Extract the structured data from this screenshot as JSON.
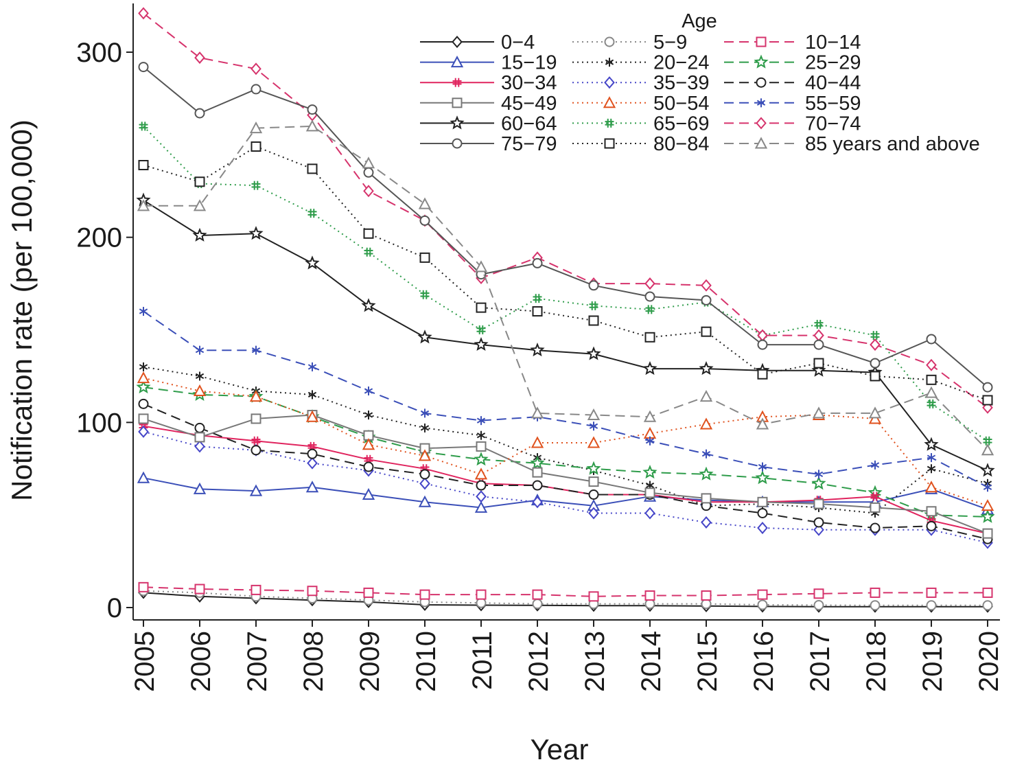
{
  "chart_data": {
    "type": "line",
    "title": "",
    "xlabel": "Year",
    "ylabel": "Notification rate (per 100,000)",
    "ylim": [
      0,
      320
    ],
    "yticks": [
      0,
      100,
      200,
      300
    ],
    "x": [
      "2005",
      "2006",
      "2007",
      "2008",
      "2009",
      "2010",
      "2011",
      "2012",
      "2013",
      "2014",
      "2015",
      "2016",
      "2017",
      "2018",
      "2019",
      "2020"
    ],
    "grid": false,
    "legend": {
      "title": "Age",
      "position": "top-right",
      "columns": 3
    },
    "series": [
      {
        "name": "0−4",
        "color": "#222222",
        "dash": "solid",
        "marker": "diamond",
        "values": [
          8,
          6,
          5,
          4,
          3,
          1.5,
          1.3,
          1.2,
          1,
          1,
          0.8,
          0.6,
          0.5,
          0.5,
          0.5,
          0.5
        ]
      },
      {
        "name": "5−9",
        "color": "#888888",
        "dash": "dot",
        "marker": "circle",
        "values": [
          9,
          8,
          6,
          5,
          4,
          3,
          2.5,
          2,
          2,
          2,
          2,
          1.5,
          1.3,
          1.2,
          1.2,
          1.2
        ]
      },
      {
        "name": "10−14",
        "color": "#d6336c",
        "dash": "dash",
        "marker": "square",
        "values": [
          11,
          10,
          9.5,
          9,
          8,
          7,
          7,
          7,
          6,
          6.5,
          6.5,
          7,
          7.5,
          8,
          8,
          8
        ]
      },
      {
        "name": "15−19",
        "color": "#3b4fb8",
        "dash": "solid",
        "marker": "triangle",
        "values": [
          70,
          64,
          63,
          65,
          61,
          57,
          54,
          58,
          55,
          60,
          58,
          57,
          57,
          57,
          64,
          53
        ]
      },
      {
        "name": "20−24",
        "color": "#222222",
        "dash": "dot",
        "marker": "asterisk",
        "values": [
          130,
          125,
          117,
          115,
          104,
          97,
          93,
          81,
          74,
          66,
          55,
          56,
          54,
          51,
          75,
          67
        ]
      },
      {
        "name": "25−29",
        "color": "#2e9c4a",
        "dash": "dash",
        "marker": "star",
        "values": [
          119,
          115,
          114,
          103,
          92,
          84,
          80,
          78,
          75,
          73,
          72,
          70,
          67,
          62,
          50,
          49
        ]
      },
      {
        "name": "30−34",
        "color": "#e0245e",
        "dash": "solid",
        "marker": "hash",
        "values": [
          98,
          93,
          90,
          87,
          80,
          75,
          67,
          66,
          61,
          61,
          57,
          57,
          58,
          60,
          47,
          40
        ]
      },
      {
        "name": "35−39",
        "color": "#4646c8",
        "dash": "dot",
        "marker": "diamond",
        "values": [
          95,
          87,
          85,
          78,
          74,
          67,
          60,
          57,
          51,
          51,
          46,
          43,
          42,
          42,
          42,
          35
        ]
      },
      {
        "name": "40−44",
        "color": "#222222",
        "dash": "dash",
        "marker": "circle",
        "values": [
          110,
          97,
          85,
          83,
          76,
          72,
          66,
          66,
          61,
          61,
          55,
          51,
          46,
          43,
          44,
          37
        ]
      },
      {
        "name": "45−49",
        "color": "#777777",
        "dash": "solid",
        "marker": "square",
        "values": [
          102,
          92,
          102,
          104,
          93,
          86,
          87,
          73,
          68,
          62,
          59,
          57,
          56,
          54,
          52,
          40
        ]
      },
      {
        "name": "50−54",
        "color": "#e0521e",
        "dash": "dot",
        "marker": "triangle",
        "values": [
          124,
          117,
          114,
          103,
          88,
          82,
          72,
          89,
          89,
          94,
          99,
          103,
          104,
          102,
          65,
          55
        ]
      },
      {
        "name": "55−59",
        "color": "#3b4fb8",
        "dash": "dash",
        "marker": "asterisk",
        "values": [
          160,
          139,
          139,
          130,
          117,
          105,
          101,
          103,
          98,
          90,
          83,
          76,
          72,
          77,
          81,
          65
        ]
      },
      {
        "name": "60−64",
        "color": "#222222",
        "dash": "solid",
        "marker": "star",
        "values": [
          220,
          201,
          202,
          186,
          163,
          146,
          142,
          139,
          137,
          129,
          129,
          128,
          128,
          127,
          88,
          74
        ]
      },
      {
        "name": "65−69",
        "color": "#2e9c4a",
        "dash": "dot",
        "marker": "hash",
        "values": [
          260,
          229,
          228,
          213,
          192,
          169,
          150,
          167,
          163,
          161,
          165,
          147,
          153,
          147,
          110,
          90
        ]
      },
      {
        "name": "70−74",
        "color": "#d6336c",
        "dash": "dash",
        "marker": "diamond",
        "values": [
          321,
          297,
          291,
          266,
          225,
          209,
          178,
          189,
          175,
          175,
          174,
          147,
          147,
          142,
          131,
          108
        ]
      },
      {
        "name": "75−79",
        "color": "#555555",
        "dash": "solid",
        "marker": "circle",
        "values": [
          292,
          267,
          280,
          269,
          235,
          209,
          180,
          186,
          174,
          168,
          166,
          142,
          142,
          132,
          145,
          119
        ]
      },
      {
        "name": "80−84",
        "color": "#222222",
        "dash": "dot",
        "marker": "square",
        "values": [
          239,
          230,
          249,
          237,
          202,
          189,
          162,
          160,
          155,
          146,
          149,
          126,
          132,
          125,
          123,
          112
        ]
      },
      {
        "name": "85 years and above",
        "color": "#888888",
        "dash": "dash",
        "marker": "triangle",
        "values": [
          217,
          217,
          259,
          260,
          240,
          218,
          184,
          105,
          104,
          103,
          114,
          99,
          105,
          105,
          116,
          85
        ]
      }
    ]
  }
}
